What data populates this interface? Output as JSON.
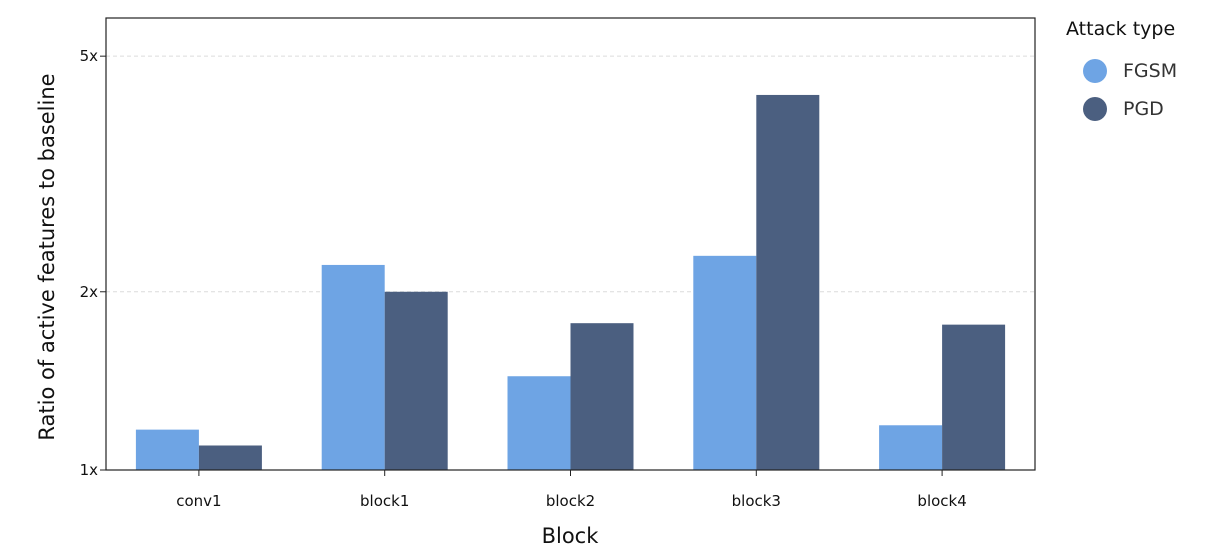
{
  "chart_data": {
    "type": "bar",
    "categories": [
      "conv1",
      "block1",
      "block2",
      "block3",
      "block4"
    ],
    "series": [
      {
        "name": "FGSM",
        "color": "#6ea4e4",
        "values": [
          1.17,
          2.22,
          1.44,
          2.3,
          1.19
        ]
      },
      {
        "name": "PGD",
        "color": "#4b5f80",
        "values": [
          1.1,
          2.0,
          1.77,
          4.3,
          1.76
        ]
      }
    ],
    "xlabel": "Block",
    "ylabel": "Ratio of active features to baseline",
    "yscale": "log",
    "ylim": [
      1,
      5.8
    ],
    "yticks": [
      {
        "value": 1,
        "label": "1x"
      },
      {
        "value": 2,
        "label": "2x"
      },
      {
        "value": 5,
        "label": "5x"
      }
    ],
    "grid": "horizontal dashed",
    "legend_title": "Attack type",
    "legend_position": "right"
  }
}
